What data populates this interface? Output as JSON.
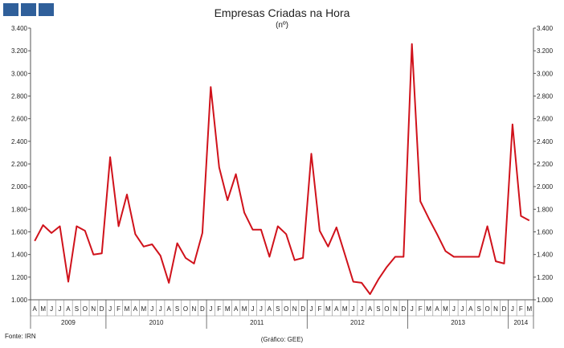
{
  "header": {
    "title": "Empresas Criadas na Hora",
    "subtitle": "(nº)"
  },
  "footer": {
    "source": "Fonte: IRN",
    "credit": "(Gráfico: GEE)"
  },
  "chart_data": {
    "type": "line",
    "title": "Empresas Criadas na Hora",
    "subtitle": "(nº)",
    "ylim": [
      1000,
      3400
    ],
    "yticks": [
      "1.000",
      "1.200",
      "1.400",
      "1.600",
      "1.800",
      "2.000",
      "2.200",
      "2.400",
      "2.600",
      "2.800",
      "3.000",
      "3.200",
      "3.400"
    ],
    "ytick_values": [
      1000,
      1200,
      1400,
      1600,
      1800,
      2000,
      2200,
      2400,
      2600,
      2800,
      3000,
      3200,
      3400
    ],
    "grid": false,
    "color": "#d0121b",
    "month_labels": [
      "A",
      "M",
      "J",
      "J",
      "A",
      "S",
      "O",
      "N",
      "D",
      "J",
      "F",
      "M",
      "A",
      "M",
      "J",
      "J",
      "A",
      "S",
      "O",
      "N",
      "D",
      "J",
      "F",
      "M",
      "A",
      "M",
      "J",
      "J",
      "A",
      "S",
      "O",
      "N",
      "D",
      "J",
      "F",
      "M",
      "A",
      "M",
      "J",
      "J",
      "A",
      "S",
      "O",
      "N",
      "D",
      "J",
      "F",
      "M",
      "A",
      "M",
      "J",
      "J",
      "A",
      "S",
      "O",
      "N",
      "D",
      "J",
      "F",
      "M"
    ],
    "years": [
      {
        "label": "2009",
        "start": 0,
        "count": 9
      },
      {
        "label": "2010",
        "start": 9,
        "count": 12
      },
      {
        "label": "2011",
        "start": 21,
        "count": 12
      },
      {
        "label": "2012",
        "start": 33,
        "count": 12
      },
      {
        "label": "2013",
        "start": 45,
        "count": 12
      },
      {
        "label": "2014",
        "start": 57,
        "count": 3
      }
    ],
    "series": [
      {
        "values": [
          1520,
          1660,
          1590,
          1650,
          1160,
          1650,
          1610,
          1400,
          1410,
          2260,
          1650,
          1930,
          1580,
          1470,
          1490,
          1390,
          1150,
          1500,
          1370,
          1320,
          1590,
          2880,
          2170,
          1880,
          2110,
          1770,
          1620,
          1620,
          1380,
          1650,
          1580,
          1350,
          1370,
          2290,
          1610,
          1470,
          1640,
          1400,
          1160,
          1150,
          1050,
          1180,
          1290,
          1380,
          1380,
          3260,
          1870,
          1720,
          1580,
          1430,
          1380,
          1380,
          1380,
          1380,
          1650,
          1340,
          1320,
          2550,
          1740,
          1700
        ]
      }
    ]
  }
}
